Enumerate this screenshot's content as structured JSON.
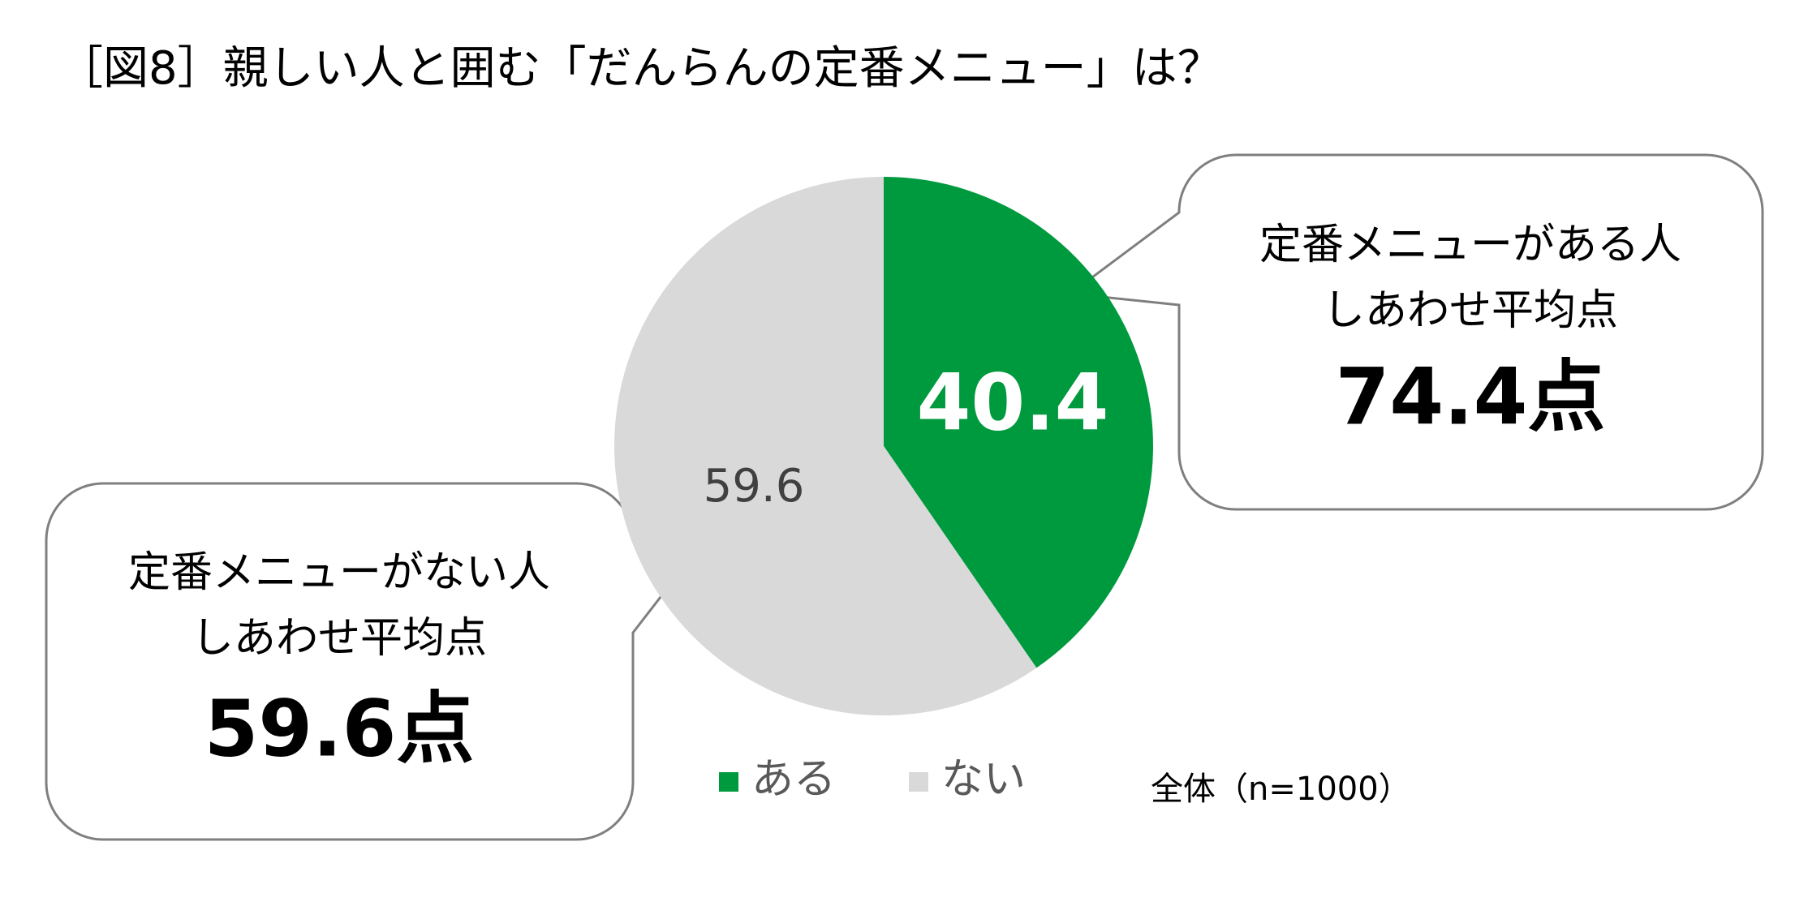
{
  "chart_data": {
    "type": "pie",
    "title": "［図8］親しい人と囲む「だんらんの定番メニュー」は？",
    "note": "全体（n=1000）",
    "categories": [
      "ある",
      "ない"
    ],
    "values": [
      40.4,
      59.6
    ],
    "colors": [
      "#009a3e",
      "#d9d9d9"
    ],
    "label_colors": [
      "#ffffff",
      "#404040"
    ],
    "annotations": [
      {
        "lines": [
          "定番メニューがある人",
          "しあわせ平均点",
          "74.4点"
        ]
      },
      {
        "lines": [
          "定番メニューがない人",
          "しあわせ平均点",
          "59.6点"
        ]
      }
    ]
  }
}
